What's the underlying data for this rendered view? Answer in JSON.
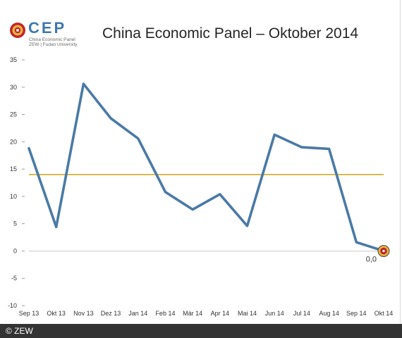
{
  "brand": {
    "logo_text": "CEP",
    "logo_sub1": "China Economic Panel",
    "logo_sub2": "ZEW | Fudan University",
    "logo_colors": {
      "ring": "#c0262c",
      "gold": "#e9b43f",
      "text": "#3f79ad"
    }
  },
  "footer": {
    "copyright": "© ZEW"
  },
  "chart_data": {
    "type": "line",
    "title": "China Economic Panel – Oktober 2014",
    "categories": [
      "Sep 13",
      "Okt 13",
      "Nov 13",
      "Dez 13",
      "Jan 14",
      "Feb 14",
      "Mär 14",
      "Apr 14",
      "Mai 14",
      "Jun 14",
      "Jul 14",
      "Aug 14",
      "Sep 14",
      "Okt 14"
    ],
    "series": [
      {
        "values": [
          18.8,
          4.4,
          30.6,
          24.3,
          20.6,
          10.8,
          7.6,
          10.4,
          4.6,
          21.3,
          19.0,
          18.7,
          1.6,
          0.0
        ],
        "color": "#4a7aa5"
      }
    ],
    "reference_line": {
      "value": 14.0,
      "color": "#c9a516"
    },
    "last_value_label": "0,0",
    "ylim": [
      -10,
      35
    ],
    "yticks": [
      -10,
      -5,
      0,
      5,
      10,
      15,
      20,
      25,
      30,
      35
    ],
    "ytick_labels": [
      "-10",
      "-5",
      "0",
      "5",
      "10",
      "15",
      "20",
      "25",
      "30",
      "35"
    ],
    "xlabel": "",
    "ylabel": "",
    "grid": "zero-line only"
  }
}
